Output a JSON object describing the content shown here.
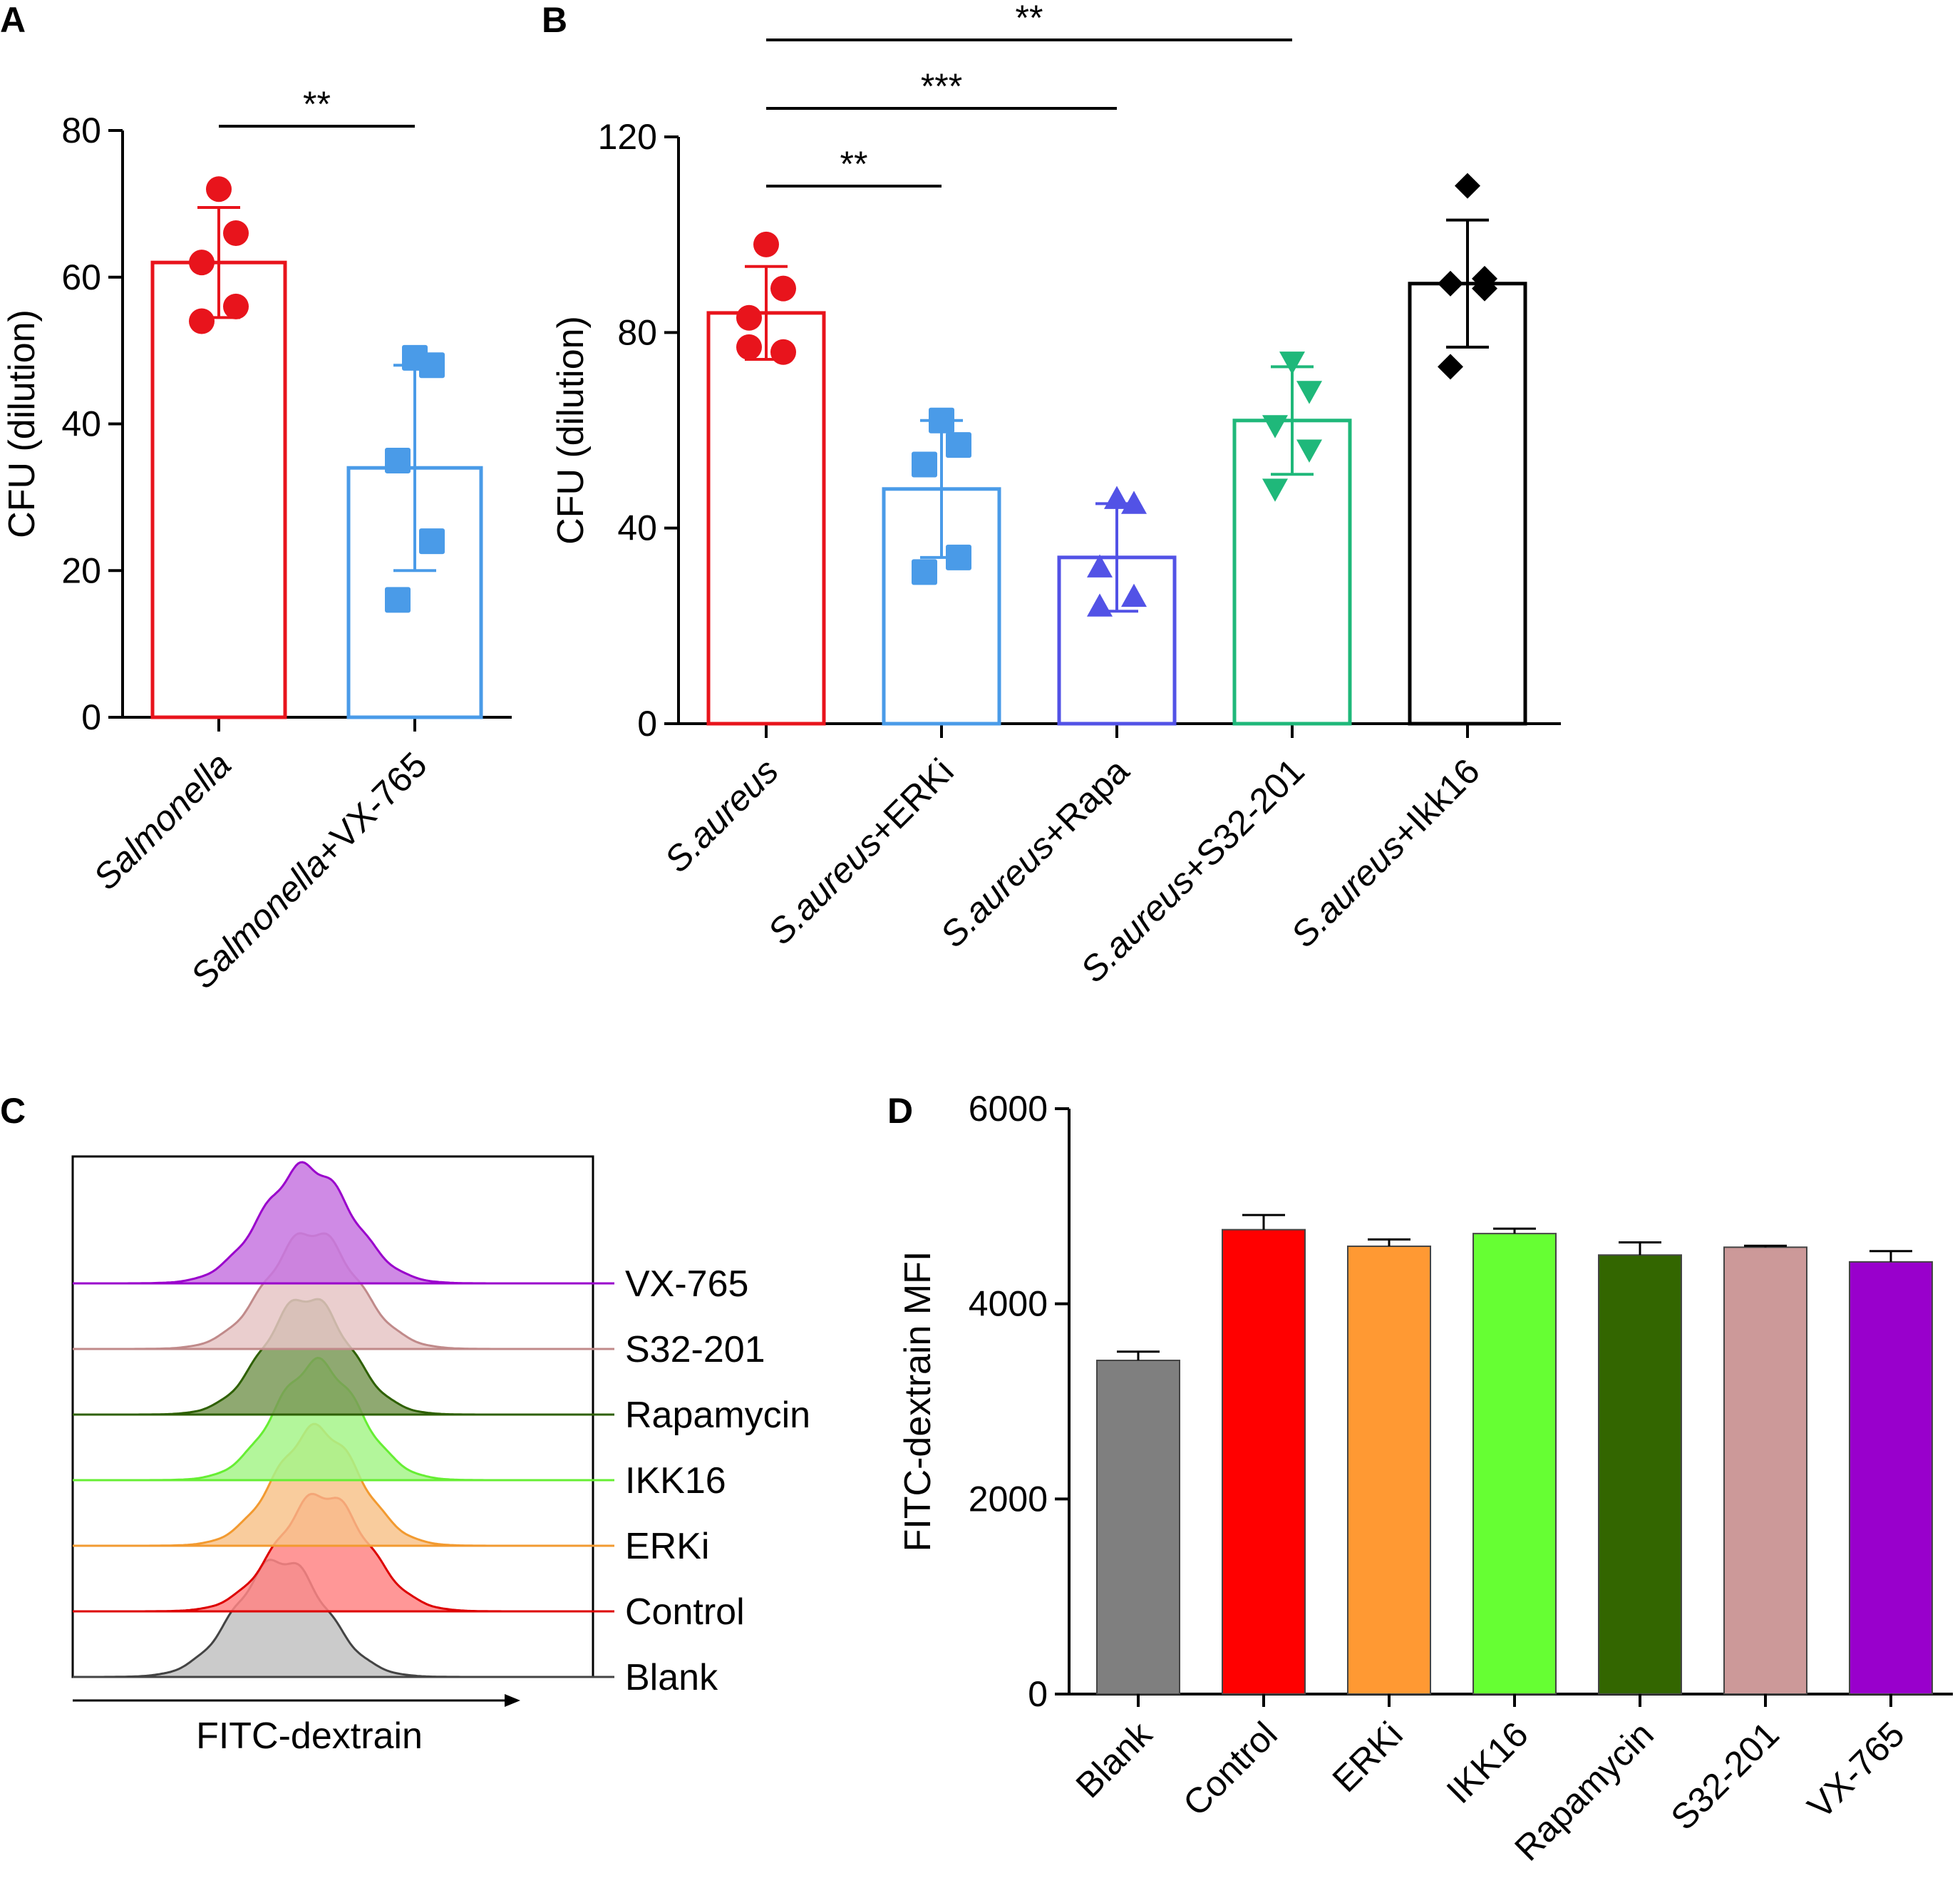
{
  "panels": {
    "A": "A",
    "B": "B",
    "C": "C",
    "D": "D"
  },
  "chart_data": [
    {
      "id": "A",
      "type": "bar",
      "ylabel": "CFU (dilution)",
      "ylim": [
        0,
        80
      ],
      "yticks": [
        0,
        20,
        40,
        60,
        80
      ],
      "categories": [
        {
          "parts": [
            {
              "text": "Salmonella",
              "italic": true
            }
          ]
        },
        {
          "parts": [
            {
              "text": "Salmonella",
              "italic": true
            },
            {
              "text": "+VX-765",
              "italic": false
            }
          ]
        }
      ],
      "series": [
        {
          "mean": 62,
          "sd": 7.5,
          "color": "#e8141c",
          "marker": "circle",
          "points": [
            72,
            66,
            62,
            56,
            54
          ]
        },
        {
          "mean": 34,
          "sd": 14,
          "color": "#4a9be8",
          "marker": "square",
          "points": [
            49,
            48,
            35,
            24,
            16
          ]
        }
      ],
      "significance": [
        {
          "from": 0,
          "to": 1,
          "label": "**"
        }
      ]
    },
    {
      "id": "B",
      "type": "bar",
      "ylabel": "CFU (dilution)",
      "ylim": [
        0,
        120
      ],
      "yticks": [
        0,
        40,
        80,
        120
      ],
      "categories": [
        {
          "parts": [
            {
              "text": "S.aureus",
              "italic": true
            }
          ]
        },
        {
          "parts": [
            {
              "text": "S.aureus",
              "italic": true
            },
            {
              "text": "+ERKi",
              "italic": false
            }
          ]
        },
        {
          "parts": [
            {
              "text": "S.aureus",
              "italic": true
            },
            {
              "text": "+Rapa",
              "italic": false
            }
          ]
        },
        {
          "parts": [
            {
              "text": "S.aureus",
              "italic": true
            },
            {
              "text": "+S32-201",
              "italic": false
            }
          ]
        },
        {
          "parts": [
            {
              "text": "S.aureus",
              "italic": true
            },
            {
              "text": "+Ikk16",
              "italic": false
            }
          ]
        }
      ],
      "series": [
        {
          "mean": 84,
          "sd": 9.5,
          "color": "#e8141c",
          "marker": "circle",
          "points": [
            98,
            89,
            83,
            76,
            77
          ]
        },
        {
          "mean": 48,
          "sd": 14,
          "color": "#4a9be8",
          "marker": "square",
          "points": [
            62,
            57,
            53,
            34,
            31
          ]
        },
        {
          "mean": 34,
          "sd": 11,
          "color": "#5252e6",
          "marker": "triangle-up",
          "points": [
            46,
            45,
            32,
            26,
            24
          ]
        },
        {
          "mean": 62,
          "sd": 11,
          "color": "#1fb87a",
          "marker": "triangle-down",
          "points": [
            74,
            68,
            61,
            56,
            48
          ]
        },
        {
          "mean": 90,
          "sd": 13,
          "color": "#000000",
          "marker": "diamond",
          "points": [
            110,
            91,
            90,
            89,
            73
          ]
        }
      ],
      "significance": [
        {
          "from": 0,
          "to": 1,
          "label": "**"
        },
        {
          "from": 0,
          "to": 2,
          "label": "***"
        },
        {
          "from": 0,
          "to": 3,
          "label": "**"
        }
      ]
    },
    {
      "id": "C",
      "type": "area",
      "xlabel": "FITC-dextrain",
      "series": [
        {
          "name": "VX-765",
          "color": "#9a00cc",
          "fill": "#c776e0",
          "peak": 0.45,
          "width": 0.085,
          "height": 1.0
        },
        {
          "name": "S32-201",
          "color": "#c08a8a",
          "fill": "#e6c6c6",
          "peak": 0.46,
          "width": 0.085,
          "height": 1.0
        },
        {
          "name": "Rapamycin",
          "color": "#2e6000",
          "fill": "#7b9a58",
          "peak": 0.45,
          "width": 0.08,
          "height": 1.0
        },
        {
          "name": "IKK16",
          "color": "#66ee33",
          "fill": "#a6f58a",
          "peak": 0.47,
          "width": 0.08,
          "height": 1.0
        },
        {
          "name": "ERKi",
          "color": "#f29a30",
          "fill": "#f8c38c",
          "peak": 0.47,
          "width": 0.08,
          "height": 1.0
        },
        {
          "name": "Control",
          "color": "#dd0000",
          "fill": "#ff8585",
          "peak": 0.48,
          "width": 0.085,
          "height": 1.0
        },
        {
          "name": "Blank",
          "color": "#444444",
          "fill": "#c2c2c2",
          "peak": 0.4,
          "width": 0.085,
          "height": 1.0
        }
      ]
    },
    {
      "id": "D",
      "type": "bar",
      "ylabel": "FITC-dextrain MFI",
      "ylim": [
        0,
        6000
      ],
      "yticks": [
        0,
        2000,
        4000,
        6000
      ],
      "categories": [
        "Blank",
        "Control",
        "ERKi",
        "IKK16",
        "Rapamycin",
        "S32-201",
        "VX-765"
      ],
      "values": [
        3420,
        4760,
        4590,
        4720,
        4500,
        4580,
        4430
      ],
      "errors": [
        90,
        150,
        70,
        50,
        130,
        15,
        110
      ],
      "colors": [
        "#7f7f7f",
        "#ff0000",
        "#ff9933",
        "#66ff33",
        "#336600",
        "#cc9999",
        "#9900cc"
      ]
    }
  ]
}
